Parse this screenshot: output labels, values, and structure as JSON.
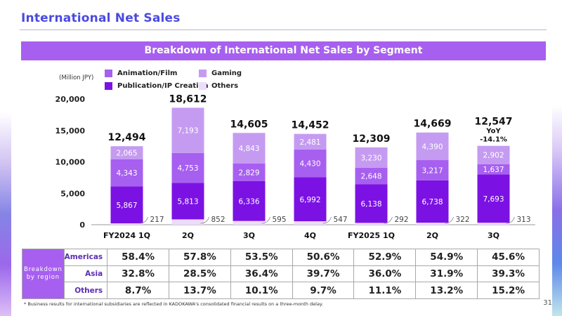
{
  "page": {
    "title": "International Net Sales",
    "banner": "Breakdown of International Net Sales by Segment",
    "footnote": "* Business results for international subsidiaries are reflected in KADOKAWA's consolidated financial results on a three-month delay.",
    "page_number": "31"
  },
  "chart_data": {
    "type": "bar",
    "stacked": true,
    "unit": "(Million JPY)",
    "legend": [
      "Animation/Film",
      "Publication/IP Creation",
      "Gaming",
      "Others"
    ],
    "categories": [
      "FY2024 1Q",
      "2Q",
      "3Q",
      "4Q",
      "FY2025 1Q",
      "2Q",
      "3Q"
    ],
    "ylim": [
      0,
      20000
    ],
    "yticks": [
      0,
      5000,
      10000,
      15000,
      20000
    ],
    "ytick_labels": [
      "0",
      "5,000",
      "10,000",
      "15,000",
      "20,000"
    ],
    "series": [
      {
        "name": "Others",
        "color": "#ecdcfb",
        "values": [
          217,
          852,
          595,
          547,
          292,
          322,
          313
        ]
      },
      {
        "name": "Publication/IP Creation",
        "color": "#7b12e3",
        "values": [
          5867,
          5813,
          6336,
          6992,
          6138,
          6738,
          7693
        ]
      },
      {
        "name": "Animation/Film",
        "color": "#a75ff0",
        "values": [
          4343,
          4753,
          2829,
          4430,
          2648,
          3217,
          1637
        ]
      },
      {
        "name": "Gaming",
        "color": "#c59bf2",
        "values": [
          2065,
          7193,
          4843,
          2481,
          3230,
          4390,
          2902
        ]
      }
    ],
    "totals": [
      12494,
      18612,
      14605,
      14452,
      12309,
      14669,
      12547
    ],
    "total_labels": [
      "12,494",
      "18,612",
      "14,605",
      "14,452",
      "12,309",
      "14,669",
      "12,547"
    ],
    "segment_labels": {
      "Others": [
        "217",
        "852",
        "595",
        "547",
        "292",
        "322",
        "313"
      ],
      "Publication/IP Creation": [
        "5,867",
        "5,813",
        "6,336",
        "6,992",
        "6,138",
        "6,738",
        "7,693"
      ],
      "Animation/Film": [
        "4,343",
        "4,753",
        "2,829",
        "4,430",
        "2,648",
        "3,217",
        "1,637"
      ],
      "Gaming": [
        "2,065",
        "7,193",
        "4,843",
        "2,481",
        "3,230",
        "4,390",
        "2,902"
      ]
    },
    "annotation": {
      "line1": "YoY",
      "line2": "-14.1%"
    }
  },
  "region_table": {
    "header": "Breakdown by region",
    "rows": [
      {
        "label": "Americas",
        "values": [
          "58.4%",
          "57.8%",
          "53.5%",
          "50.6%",
          "52.9%",
          "54.9%",
          "45.6%"
        ]
      },
      {
        "label": "Asia",
        "values": [
          "32.8%",
          "28.5%",
          "36.4%",
          "39.7%",
          "36.0%",
          "31.9%",
          "39.3%"
        ]
      },
      {
        "label": "Others",
        "values": [
          "8.7%",
          "13.7%",
          "10.1%",
          "9.7%",
          "11.1%",
          "13.2%",
          "15.2%"
        ]
      }
    ]
  }
}
